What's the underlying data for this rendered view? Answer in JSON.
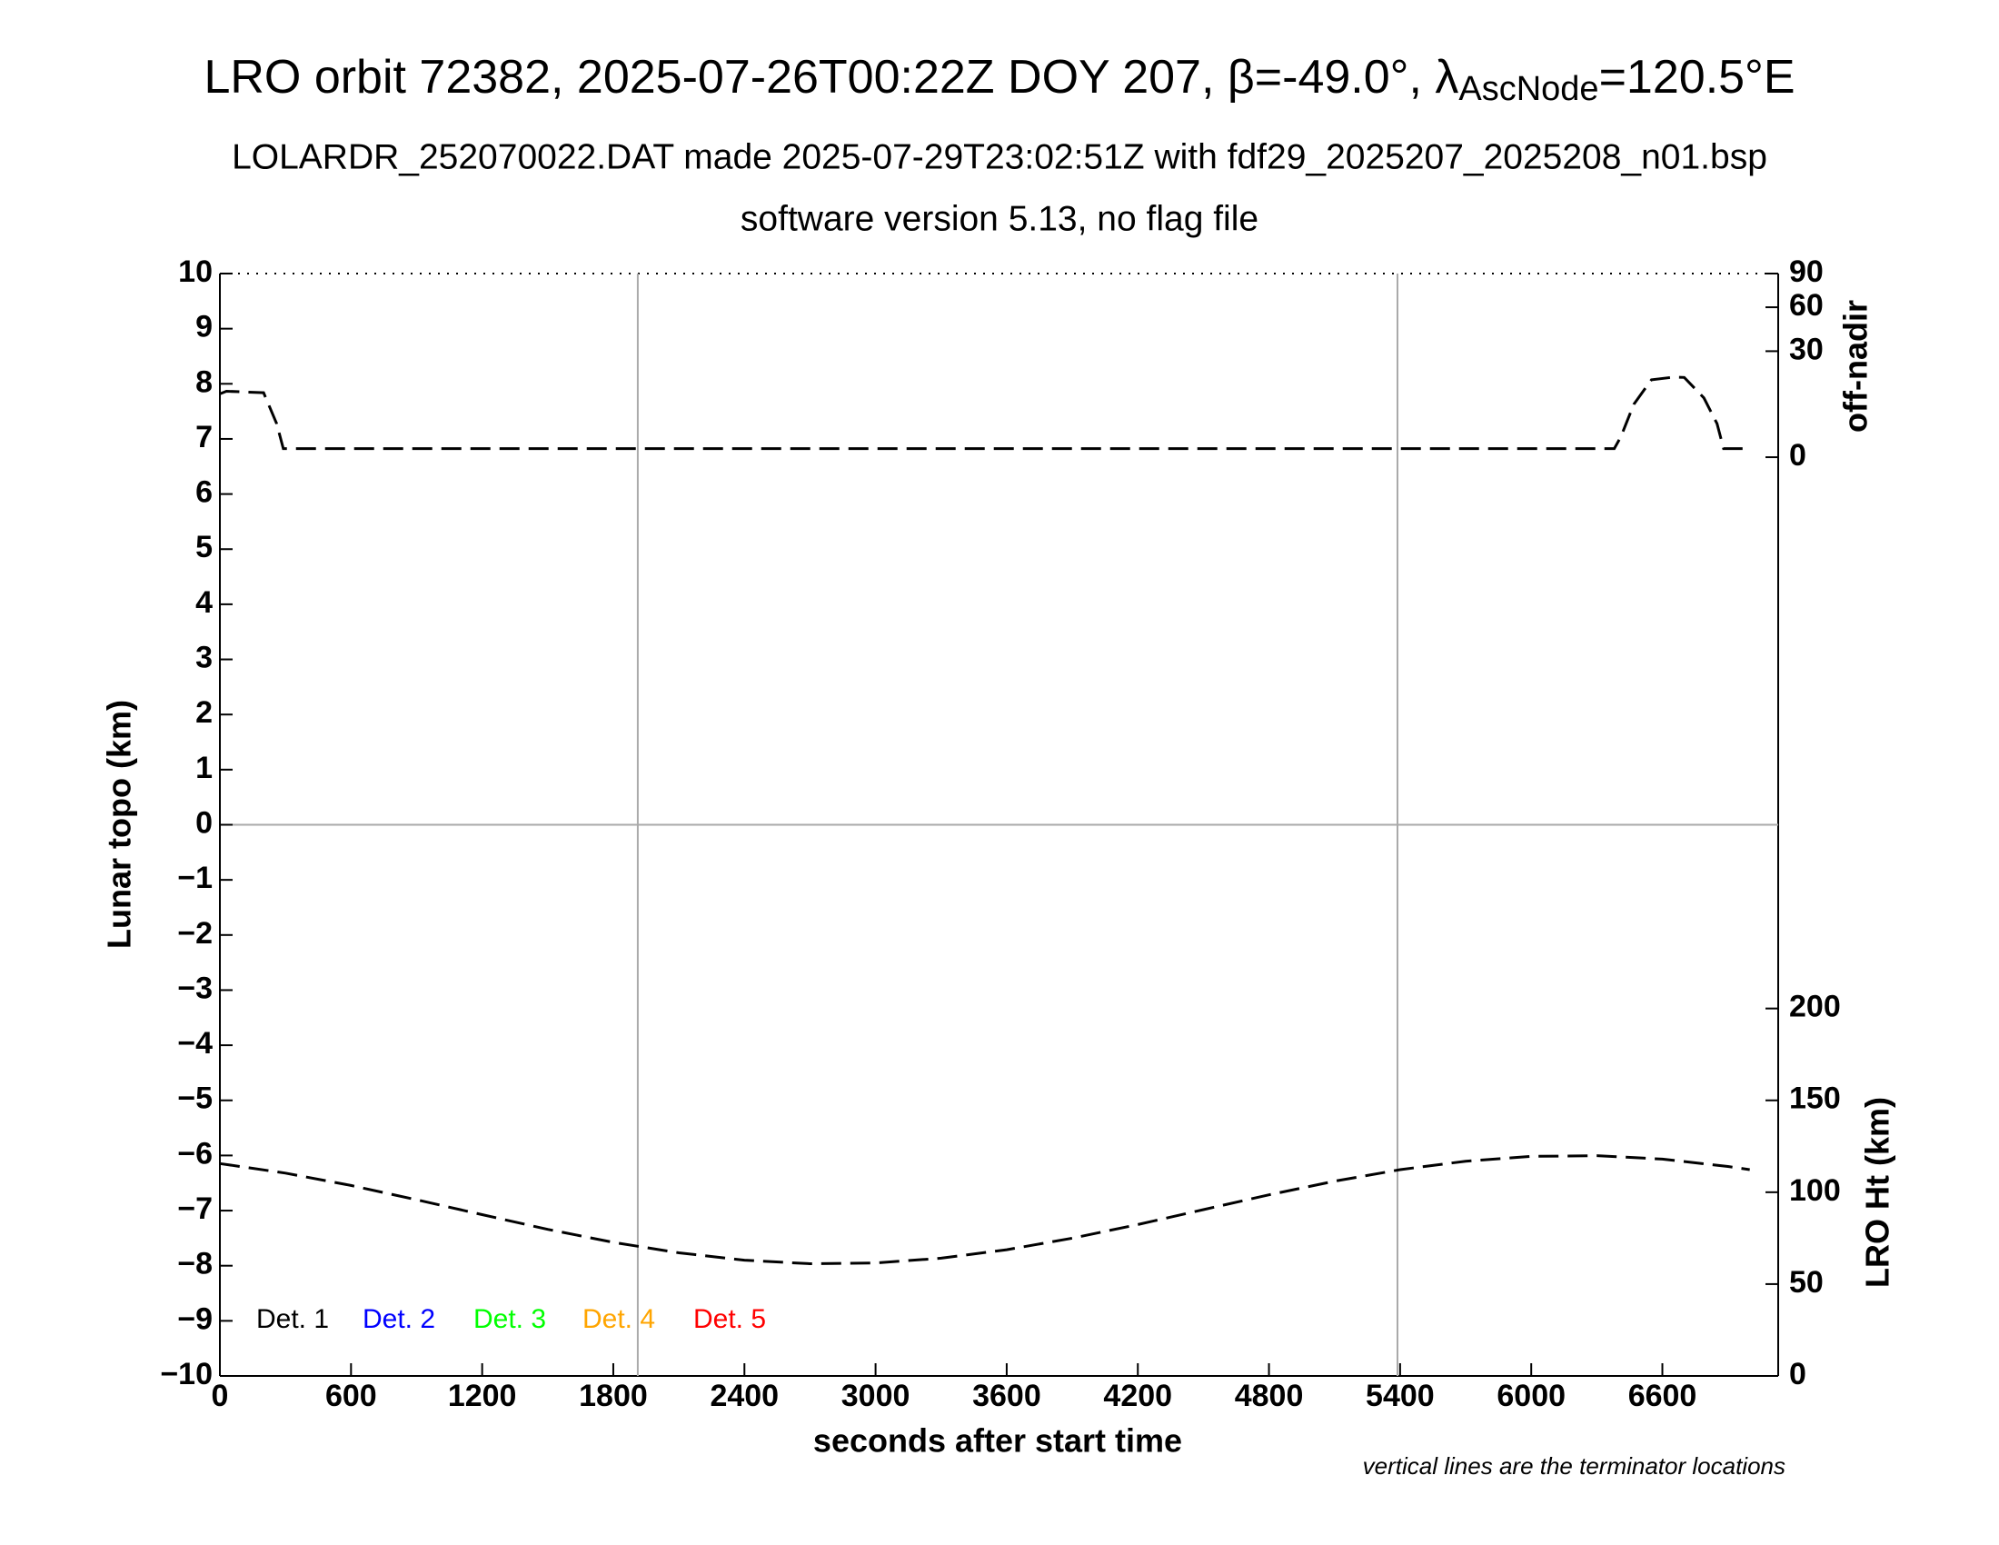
{
  "chart_data": {
    "type": "line",
    "title_parts": [
      "LRO orbit 72382, 2025-07-26T00:22Z DOY 207, β=-49.0°, λ",
      "AscNode",
      "=120.5°E"
    ],
    "subtitle": "LOLARDR_252070022.DAT made 2025-07-29T23:02:51Z with fdf29_2025207_2025208_n01.bsp",
    "subtitle2": "software version 5.13, no flag file",
    "xlabel": "seconds after start time",
    "ylabel": "Lunar topo (km)",
    "y2label": "off-nadir",
    "y3label": "LRO Ht (km)",
    "footnote": "vertical lines are the terminator locations",
    "xlim": [
      0,
      7130
    ],
    "xticks": [
      0,
      600,
      1200,
      1800,
      2400,
      3000,
      3600,
      4200,
      4800,
      5400,
      6000,
      6600
    ],
    "ylim": [
      -10,
      10
    ],
    "yticks": [
      {
        "value": -10,
        "label": "−10"
      },
      {
        "value": -9,
        "label": "−9"
      },
      {
        "value": -8,
        "label": "−8"
      },
      {
        "value": -7,
        "label": "−7"
      },
      {
        "value": -6,
        "label": "−6"
      },
      {
        "value": -5,
        "label": "−5"
      },
      {
        "value": -4,
        "label": "−4"
      },
      {
        "value": -3,
        "label": "−3"
      },
      {
        "value": -2,
        "label": "−2"
      },
      {
        "value": -1,
        "label": "−1"
      },
      0,
      1,
      2,
      3,
      4,
      5,
      6,
      7,
      8,
      9,
      10
    ],
    "y2lim": [
      0,
      90
    ],
    "y2ticks": [
      0,
      30,
      60,
      90
    ],
    "y2scale": "sqrt",
    "y3lim": [
      0,
      600
    ],
    "y3ticks": [
      0,
      50,
      100,
      150,
      200
    ],
    "terminators": [
      1912,
      5388
    ],
    "zero_line": true,
    "detectors": [
      {
        "name": "Det. 1",
        "color": "#000000"
      },
      {
        "name": "Det. 2",
        "color": "#0000ff"
      },
      {
        "name": "Det. 3",
        "color": "#00ff00"
      },
      {
        "name": "Det. 4",
        "color": "#ffa500"
      },
      {
        "name": "Det. 5",
        "color": "#ff0000"
      }
    ],
    "series": [
      {
        "axis": "y2",
        "color": "#000000",
        "x": [
          0,
          30,
          200,
          260,
          290,
          1000,
          2000,
          3000,
          4000,
          5000,
          6000,
          6380,
          6410,
          6470,
          6550,
          6650,
          6700,
          6790,
          6850,
          6880,
          7000
        ],
        "values": [
          10.7,
          11.6,
          11.1,
          3,
          0.2,
          0.2,
          0.2,
          0.2,
          0.2,
          0.2,
          0.2,
          0.2,
          1.1,
          7.5,
          16,
          17.1,
          17,
          9.4,
          3,
          0.2,
          0.2
        ]
      },
      {
        "axis": "y3",
        "color": "#000000",
        "x": [
          0,
          300,
          600,
          900,
          1200,
          1500,
          1800,
          2100,
          2400,
          2700,
          3000,
          3300,
          3600,
          3900,
          4200,
          4500,
          4800,
          5100,
          5400,
          5700,
          6000,
          6300,
          6600,
          6900,
          7000
        ],
        "values": [
          115.6,
          110.4,
          103.7,
          95.9,
          87.8,
          79.8,
          72.7,
          67.0,
          63.0,
          61.1,
          61.5,
          64.1,
          68.7,
          75.0,
          82.4,
          90.5,
          98.6,
          106.0,
          112.3,
          116.9,
          119.5,
          119.9,
          118.0,
          114.0,
          112.3
        ]
      }
    ]
  }
}
